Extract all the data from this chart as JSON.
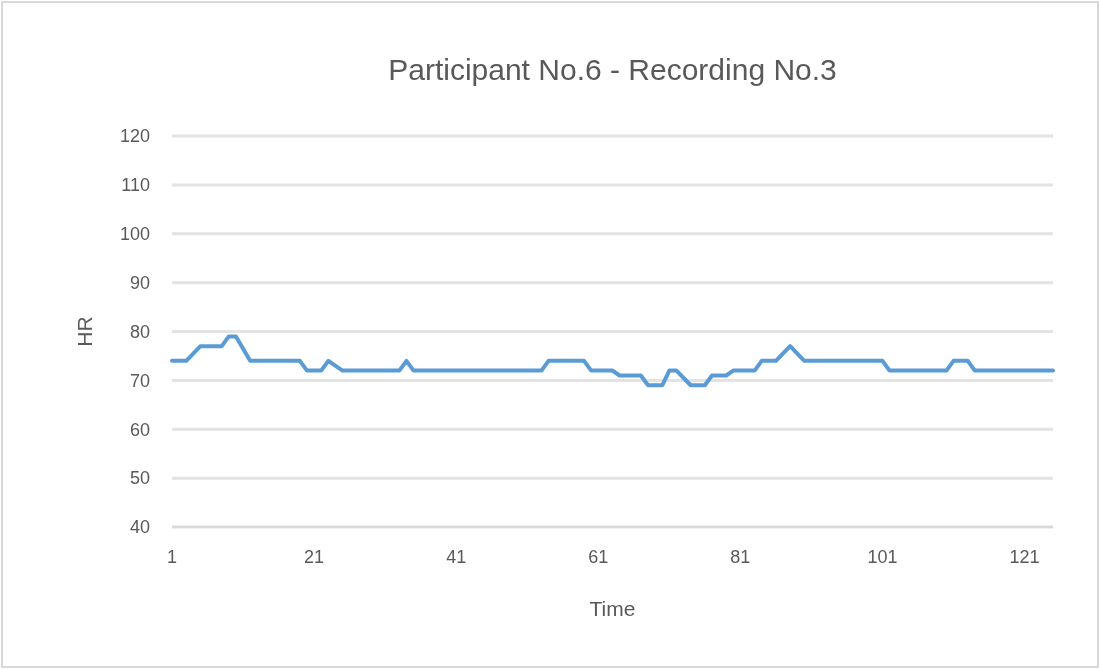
{
  "chart_data": {
    "type": "line",
    "title": "Participant No.6 - Recording No.3",
    "xlabel": "Time",
    "ylabel": "HR",
    "series": [
      {
        "color": "#5b9bd5",
        "x": [
          1,
          3,
          5,
          8,
          9,
          10,
          12,
          19,
          20,
          22,
          23,
          25,
          33,
          34,
          35,
          53,
          54,
          59,
          60,
          63,
          64,
          67,
          68,
          70,
          71,
          72,
          74,
          76,
          77,
          79,
          80,
          83,
          84,
          86,
          88,
          90,
          101,
          102,
          110,
          111,
          113,
          114,
          125
        ],
        "values": [
          74,
          74,
          77,
          77,
          79,
          79,
          74,
          74,
          72,
          72,
          74,
          72,
          72,
          74,
          72,
          72,
          74,
          74,
          72,
          72,
          71,
          71,
          69,
          69,
          72,
          72,
          69,
          69,
          71,
          71,
          72,
          72,
          74,
          74,
          77,
          74,
          74,
          72,
          72,
          74,
          74,
          72,
          72
        ]
      }
    ],
    "xlim": [
      1,
      125
    ],
    "xticks": [
      1,
      21,
      41,
      61,
      81,
      101,
      121
    ],
    "ylim": [
      40,
      120
    ],
    "yticks": [
      40,
      50,
      60,
      70,
      80,
      90,
      100,
      110,
      120
    ],
    "grid": "y",
    "marker": "none",
    "line_style": "solid"
  }
}
